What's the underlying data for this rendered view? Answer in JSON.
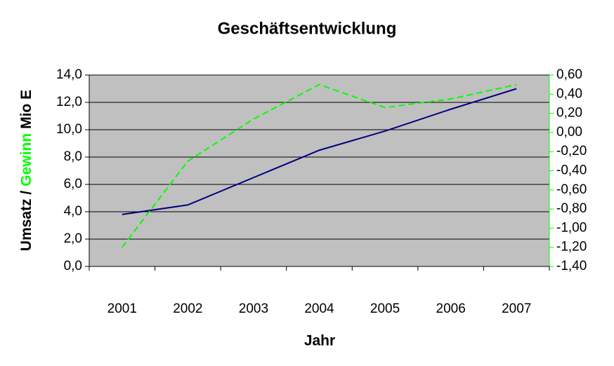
{
  "chart_data": {
    "type": "line",
    "title": "Geschäftsentwicklung",
    "xlabel": "Jahr",
    "ylabel_parts": [
      "Umsatz /",
      "Gewinn",
      "Mio E"
    ],
    "categories": [
      "2001",
      "2002",
      "2003",
      "2004",
      "2005",
      "2006",
      "2007"
    ],
    "series": [
      {
        "name": "Umsatz",
        "color": "#000080",
        "values": [
          3.8,
          4.5,
          6.5,
          8.5,
          9.9,
          11.5,
          13.0
        ]
      },
      {
        "name": "Gewinn",
        "color": "#00ff00",
        "axis": "y2",
        "dashed": true,
        "values": [
          -1.2,
          -0.3,
          0.14,
          0.5,
          0.26,
          0.35,
          0.5
        ]
      }
    ],
    "ylim": [
      0,
      14
    ],
    "yticks": [
      {
        "value": 0,
        "label": "0,0"
      },
      {
        "value": 2,
        "label": "2,0"
      },
      {
        "value": 4,
        "label": "4,0"
      },
      {
        "value": 6,
        "label": "6,0"
      },
      {
        "value": 8,
        "label": "8,0"
      },
      {
        "value": 10,
        "label": "10,0"
      },
      {
        "value": 12,
        "label": "12,0"
      },
      {
        "value": 14,
        "label": "14,0"
      }
    ],
    "y2lim": [
      -1.4,
      0.6
    ],
    "y2ticks": [
      {
        "value": -1.4,
        "label": "-1,40"
      },
      {
        "value": -1.2,
        "label": "-1,20"
      },
      {
        "value": -1.0,
        "label": "-1,00"
      },
      {
        "value": -0.8,
        "label": "-0,80"
      },
      {
        "value": -0.6,
        "label": "-0,60"
      },
      {
        "value": -0.4,
        "label": "-0,40"
      },
      {
        "value": -0.2,
        "label": "-0,20"
      },
      {
        "value": 0,
        "label": "0,00"
      },
      {
        "value": 0.2,
        "label": "0,20"
      },
      {
        "value": 0.4,
        "label": "0,40"
      },
      {
        "value": 0.6,
        "label": "0,60"
      }
    ],
    "y2_color": "#00ff00",
    "plot_background": "#c0c0c0",
    "grid": true
  }
}
